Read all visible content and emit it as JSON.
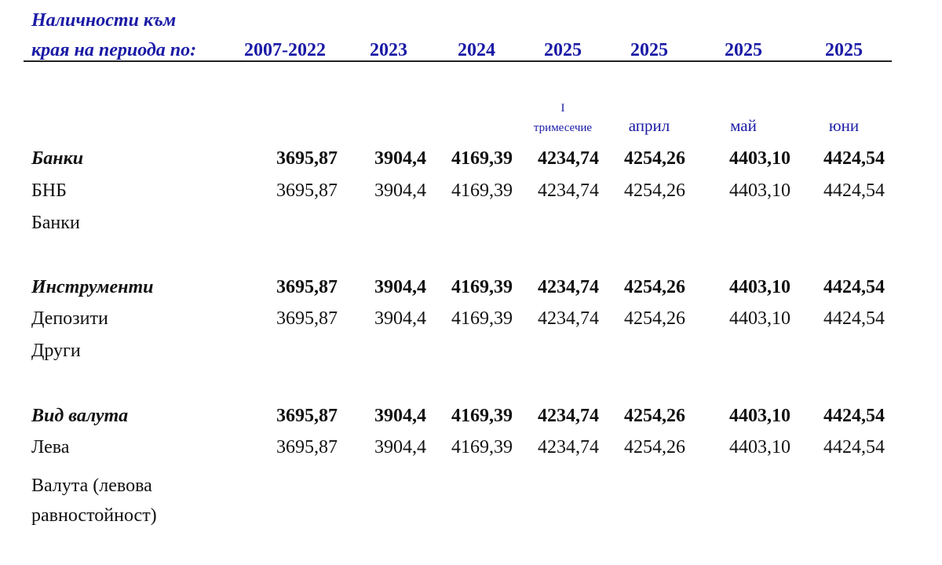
{
  "header": {
    "title_lines": [
      "Наличности към",
      "края на периода по:"
    ],
    "columns": [
      {
        "year": "2007-2022"
      },
      {
        "year": "2023"
      },
      {
        "year": "2024"
      },
      {
        "year": "2025",
        "sub": [
          "I",
          "тримесечие"
        ]
      },
      {
        "year": "2025",
        "sub": [
          "април"
        ]
      },
      {
        "year": "2025",
        "sub": [
          "май"
        ]
      },
      {
        "year": "2025",
        "sub": [
          "юни"
        ]
      }
    ]
  },
  "table": {
    "rows": [
      {
        "label": "Банки",
        "bold": true,
        "values": [
          "3695,87",
          "3904,4",
          "4169,39",
          "4234,74",
          "4254,26",
          "4403,10",
          "4424,54"
        ]
      },
      {
        "label": "БНБ",
        "values": [
          "3695,87",
          "3904,4",
          "4169,39",
          "4234,74",
          "4254,26",
          "4403,10",
          "4424,54"
        ]
      },
      {
        "label": "Банки"
      },
      {
        "label": "Инструменти",
        "bold": true,
        "values": [
          "3695,87",
          "3904,4",
          "4169,39",
          "4234,74",
          "4254,26",
          "4403,10",
          "4424,54"
        ]
      },
      {
        "label": "Депозити",
        "values": [
          "3695,87",
          "3904,4",
          "4169,39",
          "4234,74",
          "4254,26",
          "4403,10",
          "4424,54"
        ]
      },
      {
        "label": "Други"
      },
      {
        "label": "Вид валута",
        "bold": true,
        "values": [
          "3695,87",
          "3904,4",
          "4169,39",
          "4234,74",
          "4254,26",
          "4403,10",
          "4424,54"
        ]
      },
      {
        "label": "Лева",
        "values": [
          "3695,87",
          "3904,4",
          "4169,39",
          "4234,74",
          "4254,26",
          "4403,10",
          "4424,54"
        ]
      },
      {
        "label": "Валута (левова равностойност)"
      }
    ]
  }
}
